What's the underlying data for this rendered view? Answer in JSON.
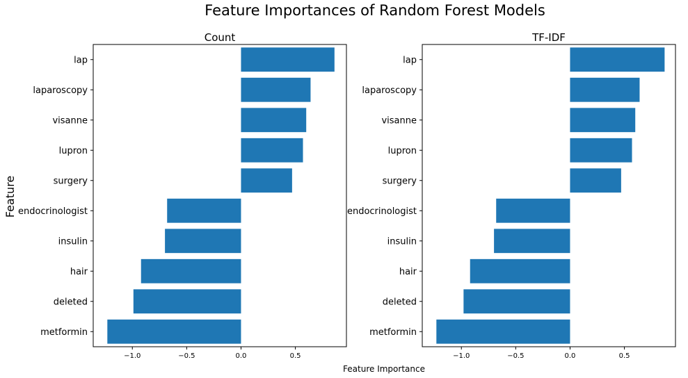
{
  "figure": {
    "title": "Feature Importances of Random Forest Models",
    "xlabel": "Feature Importance",
    "ylabel": "Feature"
  },
  "colors": {
    "bar": "#1f77b4",
    "axes": "#000000",
    "background": "#ffffff"
  },
  "chart_data": [
    {
      "type": "bar",
      "orientation": "horizontal",
      "title": "Count",
      "categories": [
        "lap",
        "laparoscopy",
        "visanne",
        "lupron",
        "surgery",
        "endocrinologist",
        "insulin",
        "hair",
        "deleted",
        "metformin"
      ],
      "values": [
        0.86,
        0.64,
        0.6,
        0.57,
        0.47,
        -0.68,
        -0.7,
        -0.92,
        -0.99,
        -1.23
      ],
      "xlim": [
        -1.36,
        0.97
      ],
      "xticks": [
        -1.0,
        -0.5,
        0.0,
        0.5
      ],
      "xtick_labels": [
        "−1.0",
        "−0.5",
        "0.0",
        "0.5"
      ],
      "grid": false,
      "legend": "none"
    },
    {
      "type": "bar",
      "orientation": "horizontal",
      "title": "TF-IDF",
      "categories": [
        "lap",
        "laparoscopy",
        "visanne",
        "lupron",
        "surgery",
        "endocrinologist",
        "insulin",
        "hair",
        "deleted",
        "metformin"
      ],
      "values": [
        0.87,
        0.64,
        0.6,
        0.57,
        0.47,
        -0.68,
        -0.7,
        -0.92,
        -0.98,
        -1.23
      ],
      "xlim": [
        -1.36,
        0.97
      ],
      "xticks": [
        -1.0,
        -0.5,
        0.0,
        0.5
      ],
      "xtick_labels": [
        "−1.0",
        "−0.5",
        "0.0",
        "0.5"
      ],
      "grid": false,
      "legend": "none"
    }
  ]
}
